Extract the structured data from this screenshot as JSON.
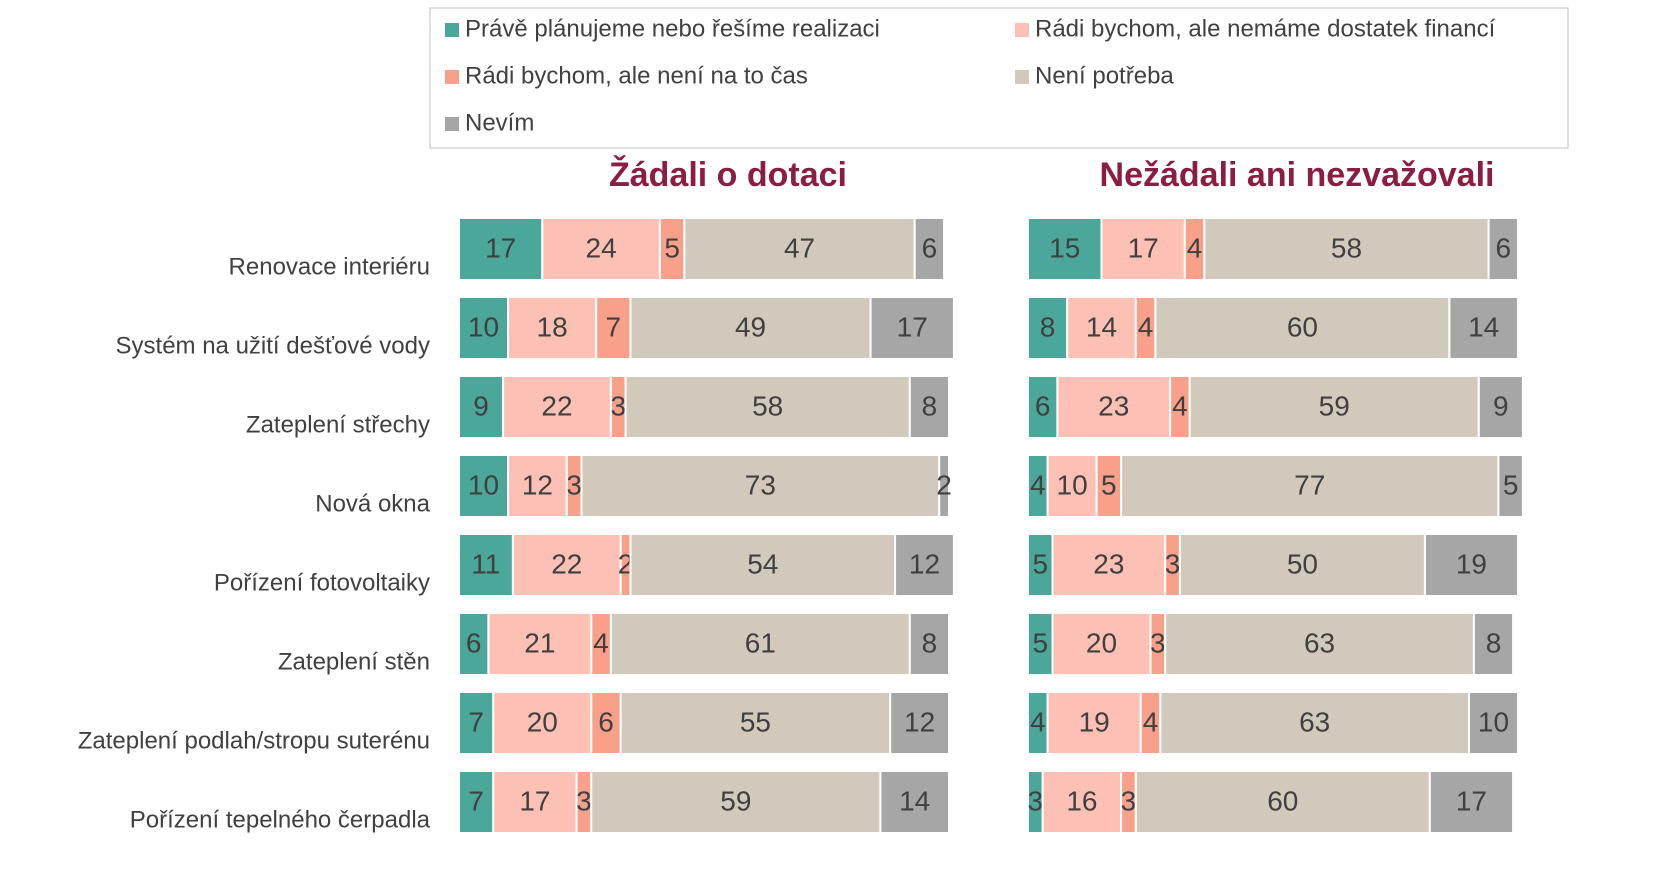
{
  "chart_data": [
    {
      "type": "bar",
      "orientation": "horizontal",
      "stacked": true,
      "title": "Žádali o dotaci",
      "categories": [
        "Renovace interiéru",
        "Systém na užití dešťové vody",
        "Zateplení střechy",
        "Nová okna",
        "Pořízení fotovoltaiky",
        "Zateplení stěn",
        "Zateplení podlah/stropu suterénu",
        "Pořízení tepelného čerpadla"
      ],
      "xlim": [
        0,
        100
      ],
      "series": [
        {
          "name": "Právě plánujeme nebo řešíme realizaci",
          "color": "#4aa79a",
          "values": [
            17,
            10,
            9,
            10,
            11,
            6,
            7,
            7
          ]
        },
        {
          "name": "Rádi bychom, ale nemáme dostatek financí",
          "color": "#fcc0b4",
          "values": [
            24,
            18,
            22,
            12,
            22,
            21,
            20,
            17
          ]
        },
        {
          "name": "Rádi bychom, ale není na to čas",
          "color": "#f8a08a",
          "values": [
            5,
            7,
            3,
            3,
            2,
            4,
            6,
            3
          ]
        },
        {
          "name": "Není potřeba",
          "color": "#d2c9bd",
          "values": [
            47,
            49,
            58,
            73,
            54,
            61,
            55,
            59
          ]
        },
        {
          "name": "Nevím",
          "color": "#a6a6a6",
          "values": [
            6,
            17,
            8,
            2,
            12,
            8,
            12,
            14
          ]
        }
      ]
    },
    {
      "type": "bar",
      "orientation": "horizontal",
      "stacked": true,
      "title": "Nežádali ani nezvažovali",
      "xlim": [
        0,
        100
      ],
      "series": [
        {
          "color": "#4aa79a",
          "values": [
            15,
            8,
            6,
            4,
            5,
            5,
            4,
            3
          ]
        },
        {
          "color": "#fcc0b4",
          "values": [
            17,
            14,
            23,
            10,
            23,
            20,
            19,
            16
          ]
        },
        {
          "color": "#f8a08a",
          "values": [
            4,
            4,
            4,
            5,
            3,
            3,
            4,
            3
          ]
        },
        {
          "color": "#d2c9bd",
          "values": [
            58,
            60,
            59,
            77,
            50,
            63,
            63,
            60
          ]
        },
        {
          "color": "#a6a6a6",
          "values": [
            6,
            14,
            9,
            5,
            19,
            8,
            10,
            17
          ]
        }
      ]
    }
  ]
}
